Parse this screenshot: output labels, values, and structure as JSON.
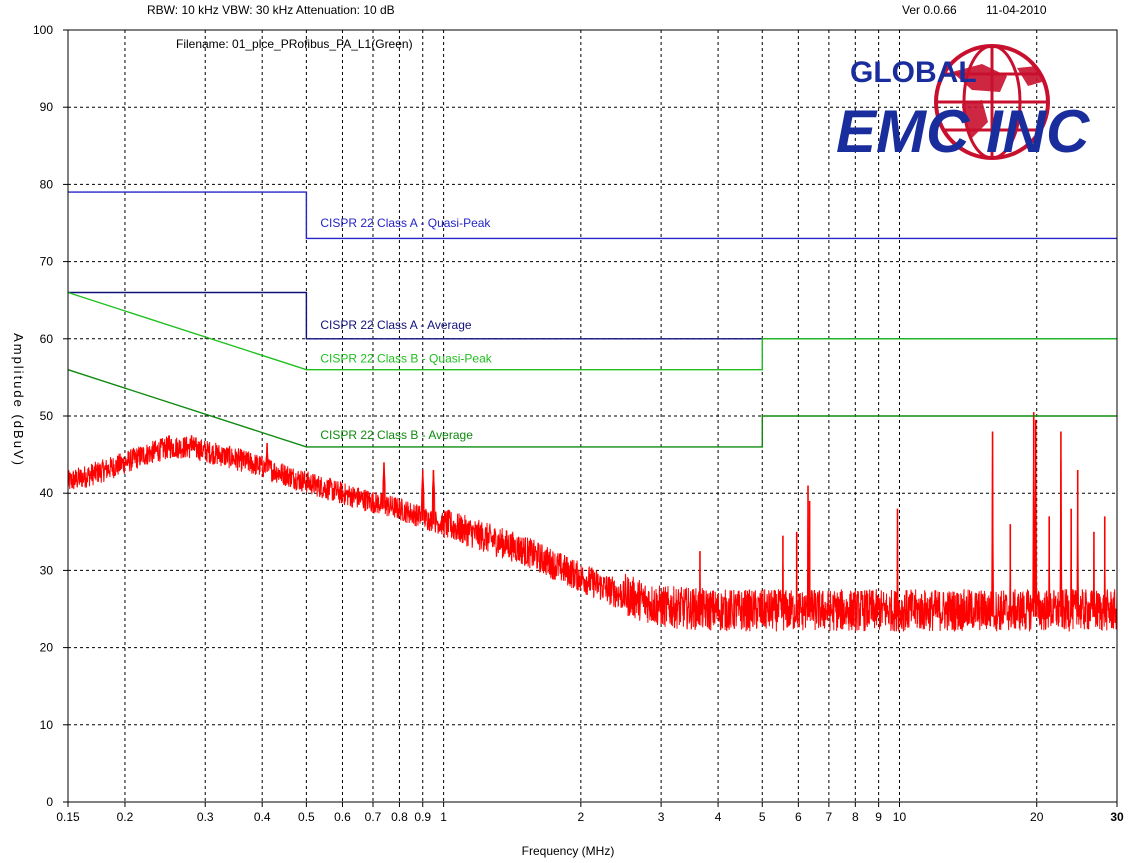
{
  "header": {
    "settings": "RBW: 10 kHz   VBW: 30 kHz    Attenuation: 10 dB",
    "version": "Ver 0.0.66",
    "date": "11-04-2010",
    "filename": "Filename: 01_plce_PRofibus_PA_L1(Green)"
  },
  "logo": {
    "line1": "GLOBAL",
    "line2": "EMC INC",
    "colors": {
      "primary": "#1a2d9c",
      "globe": "#c8102e"
    }
  },
  "chart_data": {
    "type": "line",
    "xlabel": "Frequency (MHz)",
    "ylabel": "Amplitude (dBuV)",
    "x_scale": "log",
    "xlim": [
      0.15,
      30
    ],
    "ylim": [
      0,
      100
    ],
    "grid": true,
    "x_ticks": [
      {
        "value": 0.15,
        "label": "0.15"
      },
      {
        "value": 0.2,
        "label": "0.2"
      },
      {
        "value": 0.3,
        "label": "0.3"
      },
      {
        "value": 0.4,
        "label": "0.4"
      },
      {
        "value": 0.5,
        "label": "0.5"
      },
      {
        "value": 0.6,
        "label": "0.6"
      },
      {
        "value": 0.7,
        "label": "0.7"
      },
      {
        "value": 0.8,
        "label": "0.8"
      },
      {
        "value": 0.9,
        "label": "0.9"
      },
      {
        "value": 1,
        "label": "1"
      },
      {
        "value": 2,
        "label": "2"
      },
      {
        "value": 3,
        "label": "3"
      },
      {
        "value": 4,
        "label": "4"
      },
      {
        "value": 5,
        "label": "5"
      },
      {
        "value": 6,
        "label": "6"
      },
      {
        "value": 7,
        "label": "7"
      },
      {
        "value": 8,
        "label": "8"
      },
      {
        "value": 9,
        "label": "9"
      },
      {
        "value": 10,
        "label": "10"
      },
      {
        "value": 20,
        "label": "20"
      },
      {
        "value": 30,
        "label": "30"
      }
    ],
    "y_ticks": [
      0,
      10,
      20,
      30,
      40,
      50,
      60,
      70,
      80,
      90,
      100
    ],
    "limit_lines": [
      {
        "name": "CISPR 22 Class A - Quasi-Peak",
        "color": "#2424c8",
        "points": [
          [
            0.15,
            79
          ],
          [
            0.5,
            79
          ],
          [
            0.5,
            73
          ],
          [
            30,
            73
          ]
        ],
        "label_at": [
          0.5,
          74.5
        ]
      },
      {
        "name": "CISPR 22 Class A - Average",
        "color": "#10107c",
        "points": [
          [
            0.15,
            66
          ],
          [
            0.5,
            66
          ],
          [
            0.5,
            60
          ],
          [
            30,
            60
          ]
        ],
        "label_at": [
          0.5,
          61.3
        ]
      },
      {
        "name": "CISPR 22 Class B - Quasi-Peak",
        "color": "#1ec01e",
        "points": [
          [
            0.15,
            66
          ],
          [
            0.5,
            56
          ],
          [
            5,
            56
          ],
          [
            5,
            60
          ],
          [
            30,
            60
          ]
        ],
        "label_at": [
          0.5,
          56.9
        ]
      },
      {
        "name": "CISPR 22 Class B - Average",
        "color": "#0e8a0e",
        "points": [
          [
            0.15,
            56
          ],
          [
            0.5,
            46
          ],
          [
            5,
            46
          ],
          [
            5,
            50
          ],
          [
            30,
            50
          ]
        ],
        "label_at": [
          0.5,
          47
        ]
      }
    ],
    "series": [
      {
        "color": "#ff0000",
        "envelope": [
          [
            0.15,
            41
          ],
          [
            0.18,
            42.5
          ],
          [
            0.2,
            43.5
          ],
          [
            0.22,
            44.5
          ],
          [
            0.25,
            45.5
          ],
          [
            0.28,
            45.5
          ],
          [
            0.3,
            45
          ],
          [
            0.35,
            44
          ],
          [
            0.4,
            43
          ],
          [
            0.5,
            41
          ],
          [
            0.6,
            39.5
          ],
          [
            0.8,
            37.5
          ],
          [
            1,
            35.5
          ],
          [
            1.5,
            32
          ],
          [
            2,
            28.5
          ],
          [
            2.5,
            26
          ],
          [
            3,
            24.5
          ],
          [
            4,
            24
          ],
          [
            30,
            24
          ]
        ],
        "peaks": [
          [
            0.25,
            47.5
          ],
          [
            0.28,
            47.5
          ],
          [
            0.41,
            46.5
          ],
          [
            0.74,
            44
          ],
          [
            0.9,
            43
          ],
          [
            0.95,
            43
          ],
          [
            3.65,
            32.5
          ],
          [
            5.55,
            34.5
          ],
          [
            5.95,
            35
          ],
          [
            6.3,
            41
          ],
          [
            6.35,
            39
          ],
          [
            9.9,
            38
          ],
          [
            16,
            48
          ],
          [
            17.5,
            36
          ],
          [
            19.7,
            50.5
          ],
          [
            19.9,
            49.5
          ],
          [
            21.3,
            37
          ],
          [
            22.6,
            48
          ],
          [
            23.8,
            38
          ],
          [
            24.6,
            43
          ],
          [
            26.7,
            35
          ],
          [
            28.2,
            37
          ]
        ]
      }
    ]
  }
}
